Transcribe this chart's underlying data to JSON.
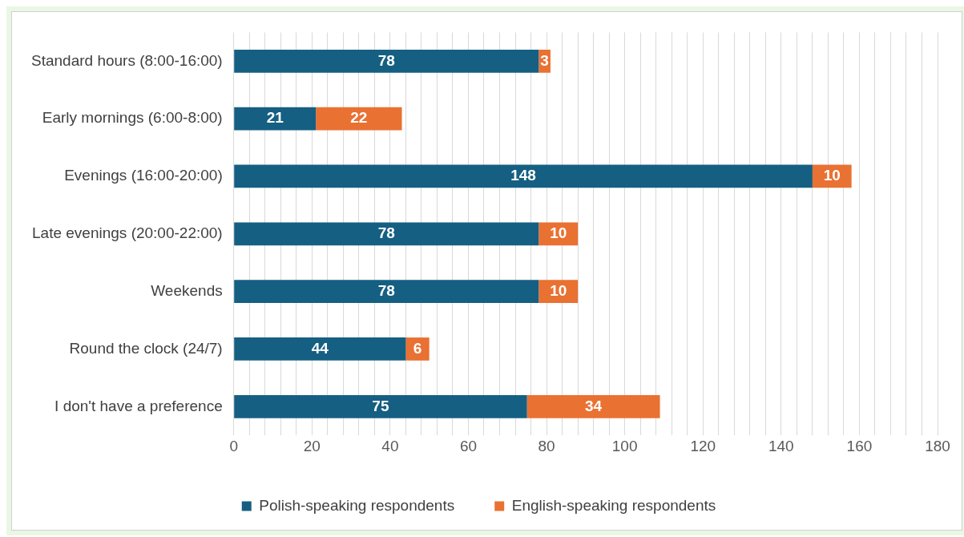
{
  "chart_data": {
    "type": "bar",
    "orientation": "horizontal",
    "stacked": true,
    "categories": [
      "Standard hours (8:00-16:00)",
      "Early mornings (6:00-8:00)",
      "Evenings (16:00-20:00)",
      "Late evenings (20:00-22:00)",
      "Weekends",
      "Round the clock (24/7)",
      "I don't have a preference"
    ],
    "series": [
      {
        "name": "Polish-speaking respondents",
        "color": "#155f82",
        "values": [
          78,
          21,
          148,
          78,
          78,
          44,
          75
        ]
      },
      {
        "name": "English-speaking respondents",
        "color": "#e97132",
        "values": [
          3,
          22,
          10,
          10,
          10,
          6,
          34
        ]
      }
    ],
    "xlim": [
      0,
      180
    ],
    "xticks": [
      0,
      {
        "value": 4,
        "label": null
      },
      {
        "value": 8,
        "label": null
      },
      {
        "value": 12,
        "label": null
      },
      {
        "value": 16,
        "label": null
      },
      20,
      {
        "value": 24,
        "label": null
      },
      {
        "value": 28,
        "label": null
      },
      {
        "value": 32,
        "label": null
      },
      {
        "value": 36,
        "label": null
      },
      40,
      {
        "value": 44,
        "label": null
      },
      {
        "value": 48,
        "label": null
      },
      {
        "value": 52,
        "label": null
      },
      {
        "value": 56,
        "label": null
      },
      60,
      {
        "value": 64,
        "label": null
      },
      {
        "value": 68,
        "label": null
      },
      {
        "value": 72,
        "label": null
      },
      {
        "value": 76,
        "label": null
      },
      80,
      {
        "value": 84,
        "label": null
      },
      {
        "value": 88,
        "label": null
      },
      {
        "value": 92,
        "label": null
      },
      {
        "value": 96,
        "label": null
      },
      100,
      {
        "value": 104,
        "label": null
      },
      {
        "value": 108,
        "label": null
      },
      {
        "value": 112,
        "label": null
      },
      {
        "value": 116,
        "label": null
      },
      120,
      {
        "value": 124,
        "label": null
      },
      {
        "value": 128,
        "label": null
      },
      {
        "value": 132,
        "label": null
      },
      {
        "value": 136,
        "label": null
      },
      140,
      {
        "value": 144,
        "label": null
      },
      {
        "value": 148,
        "label": null
      },
      {
        "value": 152,
        "label": null
      },
      {
        "value": 156,
        "label": null
      },
      160,
      {
        "value": 164,
        "label": null
      },
      {
        "value": 168,
        "label": null
      },
      {
        "value": 172,
        "label": null
      },
      {
        "value": 176,
        "label": null
      },
      180
    ],
    "grid": "x",
    "legend": "bottom",
    "data_labels": true
  }
}
